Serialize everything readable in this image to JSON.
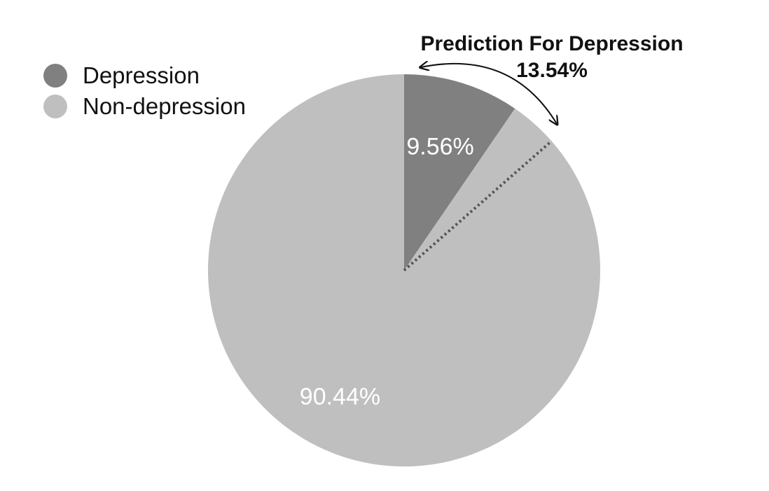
{
  "chart_data": {
    "type": "pie",
    "legend_position": "top-left",
    "slices": [
      {
        "name": "Depression",
        "value": 9.56,
        "label": "9.56%",
        "color": "#808080"
      },
      {
        "name": "Non-depression",
        "value": 90.44,
        "label": "90.44%",
        "color": "#bfbfbf"
      }
    ],
    "annotation": {
      "title": "Prediction For Depression",
      "value": 13.54,
      "value_label": "13.54%"
    }
  }
}
